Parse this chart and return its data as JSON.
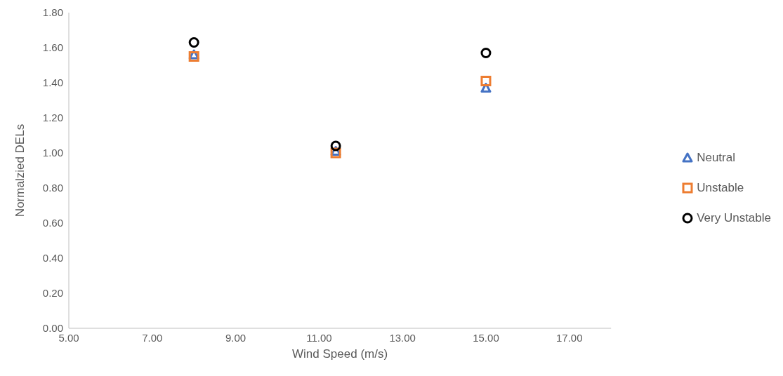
{
  "chart_data": {
    "type": "scatter",
    "xlabel": "Wind Speed (m/s)",
    "ylabel": "Normalzied DELs",
    "x": [
      8,
      11.4,
      15
    ],
    "xlim": [
      5,
      18
    ],
    "xticks": [
      {
        "value": 5,
        "label": "5.00"
      },
      {
        "value": 7,
        "label": "7.00"
      },
      {
        "value": 9,
        "label": "9.00"
      },
      {
        "value": 11,
        "label": "11.00"
      },
      {
        "value": 13,
        "label": "13.00"
      },
      {
        "value": 15,
        "label": "15.00"
      },
      {
        "value": 17,
        "label": "17.00"
      }
    ],
    "ylim": [
      0,
      1.8
    ],
    "yticks": [
      {
        "value": 0,
        "label": "0.00"
      },
      {
        "value": 0.2,
        "label": "0.20"
      },
      {
        "value": 0.4,
        "label": "0.40"
      },
      {
        "value": 0.6,
        "label": "0.60"
      },
      {
        "value": 0.8,
        "label": "0.80"
      },
      {
        "value": 1,
        "label": "1.00"
      },
      {
        "value": 1.2,
        "label": "1.20"
      },
      {
        "value": 1.4,
        "label": "1.40"
      },
      {
        "value": 1.6,
        "label": "1.60"
      },
      {
        "value": 1.8,
        "label": "1.80"
      }
    ],
    "grid": false,
    "legend": "right",
    "series": [
      {
        "name": "Neutral",
        "color": "#4472c4",
        "marker": "triangle",
        "values": [
          1.56,
          1.01,
          1.37
        ]
      },
      {
        "name": "Unstable",
        "color": "#ed7d31",
        "marker": "square",
        "values": [
          1.55,
          1.0,
          1.41
        ]
      },
      {
        "name": "Very Unstable",
        "color": "#000000",
        "marker": "circle",
        "values": [
          1.63,
          1.04,
          1.57
        ]
      }
    ]
  }
}
